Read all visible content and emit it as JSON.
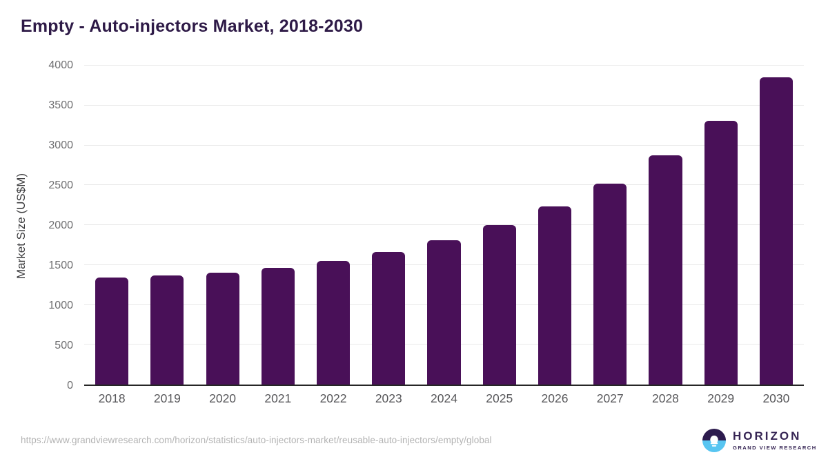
{
  "header": {
    "title": "Empty - Auto-injectors Market, 2018-2030"
  },
  "chart_data": {
    "type": "bar",
    "title": "Empty - Auto-injectors Market, 2018-2030",
    "categories": [
      "2018",
      "2019",
      "2020",
      "2021",
      "2022",
      "2023",
      "2024",
      "2025",
      "2026",
      "2027",
      "2028",
      "2029",
      "2030"
    ],
    "values": [
      1345,
      1371,
      1405,
      1463,
      1552,
      1663,
      1807,
      2002,
      2234,
      2519,
      2873,
      3306,
      3850
    ],
    "xlabel": "",
    "ylabel": "Market Size (US$M)",
    "ylim": [
      0,
      4000
    ],
    "yticks": [
      0,
      500,
      1000,
      1500,
      2000,
      2500,
      3000,
      3500,
      4000
    ],
    "grid": true,
    "legend": false,
    "bar_color": "#491058"
  },
  "footer": {
    "source_url": "https://www.grandviewresearch.com/horizon/statistics/auto-injectors-market/reusable-auto-injectors/empty/global",
    "logo": {
      "brand": "HORIZON",
      "tagline": "GRAND VIEW RESEARCH"
    }
  },
  "colors": {
    "bar": "#491058",
    "title_text": "#2e1a47",
    "brand_purple": "#2d1b4e",
    "brand_blue": "#58c5f1",
    "gridline": "#e8e8e8",
    "axis_line": "#262626",
    "y_tick_text": "#6e6e70",
    "x_tick_text": "#57575a",
    "footer_text": "#b3b3b3"
  }
}
